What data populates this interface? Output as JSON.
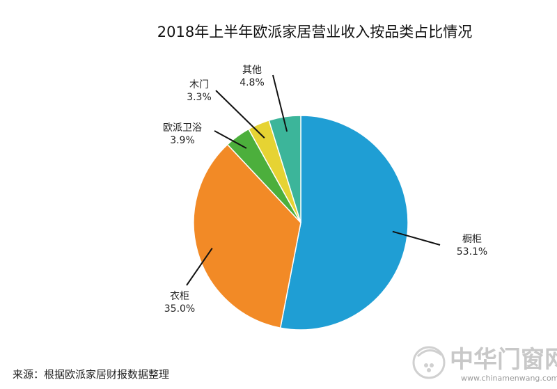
{
  "chart_data": {
    "type": "pie",
    "title": "2018年上半年欧派家居营业收入按品类占比情况",
    "slices": [
      {
        "label": "橱柜",
        "value": 53.1,
        "value_text": "53.1%",
        "color": "#1f9ed4"
      },
      {
        "label": "衣柜",
        "value": 35.0,
        "value_text": "35.0%",
        "color": "#f28a26"
      },
      {
        "label": "欧派卫浴",
        "value": 3.9,
        "value_text": "3.9%",
        "color": "#4caf3c"
      },
      {
        "label": "木门",
        "value": 3.3,
        "value_text": "3.3%",
        "color": "#e6d333"
      },
      {
        "label": "其他",
        "value": 4.8,
        "value_text": "4.8%",
        "color": "#3cb59a"
      }
    ],
    "start": "12 o'clock",
    "direction": "clockwise",
    "legend": "none"
  },
  "source": "来源：根据欧派家居财报数据整理",
  "watermark": {
    "name": "中华门窗网",
    "url": "www.chinamenwang.com"
  }
}
